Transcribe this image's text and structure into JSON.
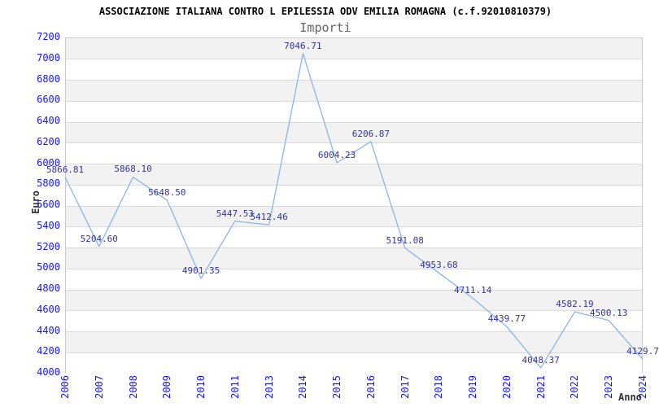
{
  "header": {
    "title": "ASSOCIAZIONE ITALIANA CONTRO L EPILESSIA ODV EMILIA ROMAGNA (c.f.92010810379)",
    "subtitle": "Importi"
  },
  "chart_data": {
    "type": "line",
    "title": "ASSOCIAZIONE ITALIANA CONTRO L EPILESSIA ODV EMILIA ROMAGNA (c.f.92010810379)",
    "subtitle": "Importi",
    "xlabel": "Anno",
    "ylabel": "Euro",
    "x": [
      "2006",
      "2007",
      "2008",
      "2009",
      "2010",
      "2011",
      "2013",
      "2014",
      "2015",
      "2016",
      "2017",
      "2018",
      "2019",
      "2020",
      "2021",
      "2022",
      "2023",
      "2024"
    ],
    "values": [
      5866.81,
      5204.6,
      5868.1,
      5648.5,
      4901.35,
      5447.53,
      5412.46,
      7046.71,
      6004.23,
      6206.87,
      5191.08,
      4953.68,
      4711.14,
      4439.77,
      4048.37,
      4582.19,
      4500.13,
      4129.7
    ],
    "point_labels": [
      "5866.81",
      "5204.60",
      "5868.10",
      "5648.50",
      "4901.35",
      "5447.53",
      "5412.46",
      "7046.71",
      "6004.23",
      "6206.87",
      "5191.08",
      "4953.68",
      "4711.14",
      "4439.77",
      "4048.37",
      "4582.19",
      "4500.13",
      "4129.7"
    ],
    "ylim": [
      4000,
      7200
    ],
    "ytick_step": 200,
    "grid": "horizontal gridlines with alternating gray/white bands",
    "legend": "none",
    "colors": {
      "line": "#8cb4e8",
      "axis_tick_label": "#1616e0",
      "data_label": "#333399",
      "band_gray": "#f2f2f2",
      "band_white": "#ffffff",
      "gridline": "#dbdbdb",
      "plot_border": "#c9c9c9",
      "title": "#000000",
      "subtitle": "#666666",
      "axis_title": "#333333"
    }
  }
}
